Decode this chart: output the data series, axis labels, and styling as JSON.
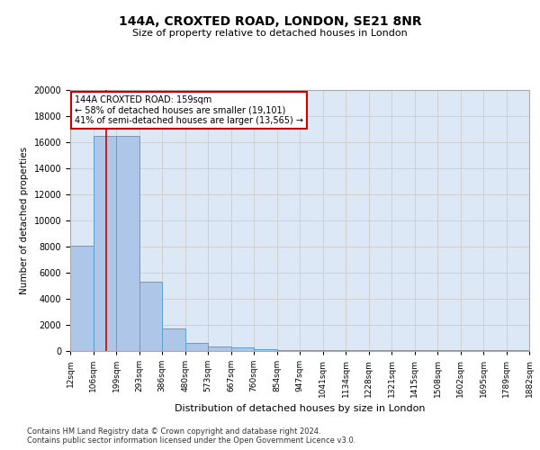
{
  "title1": "144A, CROXTED ROAD, LONDON, SE21 8NR",
  "title2": "Size of property relative to detached houses in London",
  "xlabel": "Distribution of detached houses by size in London",
  "ylabel": "Number of detached properties",
  "bin_edges": [
    12,
    106,
    199,
    293,
    386,
    480,
    573,
    667,
    760,
    854,
    947,
    1041,
    1134,
    1228,
    1321,
    1415,
    1508,
    1602,
    1695,
    1789,
    1882
  ],
  "bin_labels": [
    "12sqm",
    "106sqm",
    "199sqm",
    "293sqm",
    "386sqm",
    "480sqm",
    "573sqm",
    "667sqm",
    "760sqm",
    "854sqm",
    "947sqm",
    "1041sqm",
    "1134sqm",
    "1228sqm",
    "1321sqm",
    "1415sqm",
    "1508sqm",
    "1602sqm",
    "1695sqm",
    "1789sqm",
    "1882sqm"
  ],
  "bar_heights": [
    8100,
    16500,
    16500,
    5300,
    1700,
    650,
    350,
    250,
    150,
    100,
    100,
    50,
    50,
    50,
    50,
    50,
    50,
    50,
    50,
    50
  ],
  "bar_color": "#aec6e8",
  "bar_edge_color": "#5a9fd4",
  "property_size": 159,
  "vline_color": "#cc0000",
  "annotation_line1": "144A CROXTED ROAD: 159sqm",
  "annotation_line2": "← 58% of detached houses are smaller (19,101)",
  "annotation_line3": "41% of semi-detached houses are larger (13,565) →",
  "annotation_box_color": "#cc0000",
  "ylim": [
    0,
    20000
  ],
  "yticks": [
    0,
    2000,
    4000,
    6000,
    8000,
    10000,
    12000,
    14000,
    16000,
    18000,
    20000
  ],
  "grid_color": "#cccccc",
  "bg_color": "#dce8f5",
  "footer1": "Contains HM Land Registry data © Crown copyright and database right 2024.",
  "footer2": "Contains public sector information licensed under the Open Government Licence v3.0."
}
